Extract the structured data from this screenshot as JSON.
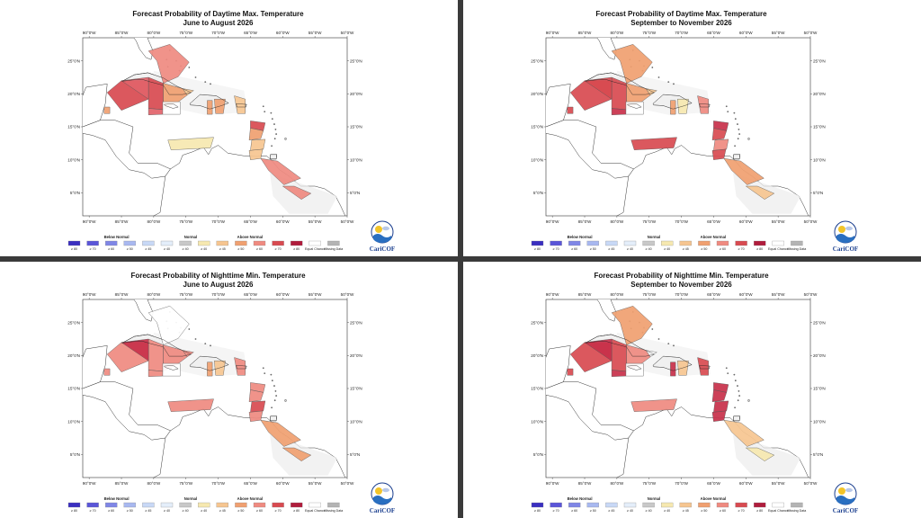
{
  "panels": [
    {
      "id": "day-jja",
      "title_line1": "Forecast Probability of Daytime Max. Temperature",
      "title_line2": "June to August 2026",
      "regions": {
        "bahamas": "#ef8a80",
        "gulf_w": "#d84a50",
        "gulf_c": "#d84a50",
        "gulf_e": "#e2636a",
        "cuba_w": "#e2636a",
        "cuba_c": "#f0a070",
        "cuba_e": "#f6c590",
        "jamaica": "#ffffff",
        "mexico": "#f0a070",
        "hispaniola_w": "#f0a070",
        "hispaniola_e": "#f0a070",
        "pr": "#f6c590",
        "leeward_n": "#d84a50",
        "leeward_s": "#f0a070",
        "windward": "#f6c590",
        "trinidad": "#f6c590",
        "abc": "#f6e8b0",
        "guyana": "#ef8a80",
        "suriname": "#ef8a80"
      }
    },
    {
      "id": "day-son",
      "title_line1": "Forecast Probability of Daytime Max. Temperature",
      "title_line2": "September to November 2026",
      "regions": {
        "bahamas": "#f0a070",
        "gulf_w": "#d84a50",
        "gulf_c": "#d84a50",
        "gulf_e": "#c8304a",
        "cuba_w": "#d84a50",
        "cuba_c": "#f0a070",
        "cuba_e": "#f6c590",
        "jamaica": "#ffffff",
        "mexico": "#d84a50",
        "hispaniola_w": "#f0a070",
        "hispaniola_e": "#f6e8b0",
        "pr": "#ef8a80",
        "leeward_n": "#c8304a",
        "leeward_s": "#d84a50",
        "windward": "#ef8a80",
        "trinidad": "#d84a50",
        "abc": "#d84a50",
        "guyana": "#f0a070",
        "suriname": "#f6c590"
      }
    },
    {
      "id": "night-jja",
      "title_line1": "Forecast Probability of Nighttime Min. Temperature",
      "title_line2": "June to August 2026",
      "regions": {
        "bahamas": "#ffffff",
        "gulf_w": "#ef8a80",
        "gulf_c": "#ef8a80",
        "gulf_e": "#ef8a80",
        "cuba_w": "#c8304a",
        "cuba_c": "#ef8a80",
        "cuba_e": "#ef8a80",
        "jamaica": "#ffffff",
        "mexico": "#ef8a80",
        "hispaniola_w": "#f0a070",
        "hispaniola_e": "#f6c590",
        "pr": "#ef8a80",
        "leeward_n": "#ef8a80",
        "leeward_s": "#ef8a80",
        "windward": "#d84a50",
        "trinidad": "#ef8a80",
        "abc": "#ef8a80",
        "guyana": "#f0a070",
        "suriname": "#f0a070"
      }
    },
    {
      "id": "night-son",
      "title_line1": "Forecast Probability of Nighttime Min. Temperature",
      "title_line2": "September to November 2026",
      "regions": {
        "bahamas": "#f0a070",
        "gulf_w": "#d84a50",
        "gulf_c": "#d84a50",
        "gulf_e": "#c8304a",
        "cuba_w": "#c8304a",
        "cuba_c": "#ef8a80",
        "cuba_e": "#ffffff",
        "jamaica": "#ffffff",
        "mexico": "#d84a50",
        "hispaniola_w": "#c8304a",
        "hispaniola_e": "#f6c590",
        "pr": "#d84a50",
        "leeward_n": "#c8304a",
        "leeward_s": "#c8304a",
        "windward": "#c8304a",
        "trinidad": "#c8304a",
        "abc": "#ef8a80",
        "guyana": "#f6c590",
        "suriname": "#f6e8b0"
      }
    }
  ],
  "axes": {
    "lon_labels": [
      "90°0'W",
      "85°0'W",
      "80°0'W",
      "75°0'W",
      "70°0'W",
      "65°0'W",
      "60°0'W",
      "55°0'W",
      "50°0'W"
    ],
    "lat_labels": [
      "25°0'N",
      "20°0'N",
      "15°0'N",
      "10°0'N",
      "5°0'N"
    ]
  },
  "legend": {
    "below_label": "Below Normal",
    "normal_label": "Normal",
    "above_label": "Above Normal",
    "bins": [
      {
        "label": "≥ 80",
        "color": "#3a2fc0"
      },
      {
        "label": "≥ 70",
        "color": "#5a55d8"
      },
      {
        "label": "≥ 60",
        "color": "#7f86e6"
      },
      {
        "label": "≥ 50",
        "color": "#a8b8f0"
      },
      {
        "label": "≥ 45",
        "color": "#c8d8f6"
      },
      {
        "label": "≥ 40",
        "color": "#e4eefa"
      },
      {
        "label": "≥ 40",
        "color": "#c8c8c8"
      },
      {
        "label": "≥ 40",
        "color": "#f6e8b0"
      },
      {
        "label": "≥ 45",
        "color": "#f6c590"
      },
      {
        "label": "≥ 50",
        "color": "#f0a070"
      },
      {
        "label": "≥ 60",
        "color": "#ef8a80"
      },
      {
        "label": "≥ 70",
        "color": "#d84a50"
      },
      {
        "label": "≥ 80",
        "color": "#b01c3c"
      },
      {
        "label": "Equal Chance",
        "color": "#ffffff"
      },
      {
        "label": "Missing Data",
        "color": "#b4b4b4"
      }
    ]
  },
  "logo": {
    "text": "CariCOF"
  }
}
